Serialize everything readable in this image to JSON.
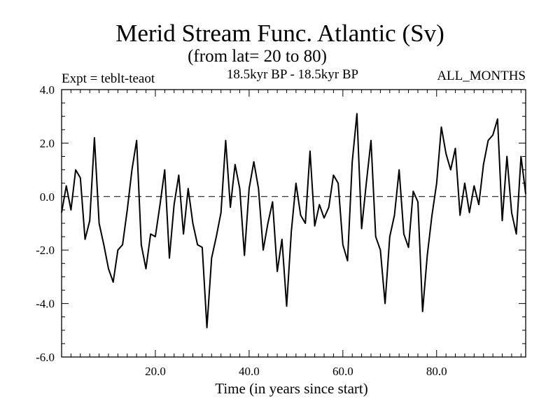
{
  "chart_data": {
    "type": "line",
    "title": "Merid Stream Func. Atlantic (Sv)",
    "subtitle": "(from lat= 20 to 80)",
    "annotations": {
      "left": "Expt = teblt-teaot",
      "center": "18.5kyr BP - 18.5kyr BP",
      "right": "ALL_MONTHS"
    },
    "xlabel": "Time (in years since start)",
    "ylabel": "",
    "xlim": [
      0,
      99
    ],
    "ylim": [
      -6,
      4
    ],
    "xticks": [
      20,
      40,
      60,
      80
    ],
    "xtick_labels": [
      "20.0",
      "40.0",
      "60.0",
      "80.0"
    ],
    "yticks": [
      -6,
      -4,
      -2,
      0,
      2,
      4
    ],
    "ytick_labels": [
      "-6.0",
      "-4.0",
      "-2.0",
      "0.0",
      "2.0",
      "4.0"
    ],
    "reference_line": 0,
    "grid": false,
    "series": [
      {
        "name": "Merid Stream Func. Atlantic",
        "x": [
          0,
          1,
          2,
          3,
          4,
          5,
          6,
          7,
          8,
          9,
          10,
          11,
          12,
          13,
          14,
          15,
          16,
          17,
          18,
          19,
          20,
          21,
          22,
          23,
          24,
          25,
          26,
          27,
          28,
          29,
          30,
          31,
          32,
          33,
          34,
          35,
          36,
          37,
          38,
          39,
          40,
          41,
          42,
          43,
          44,
          45,
          46,
          47,
          48,
          49,
          50,
          51,
          52,
          53,
          54,
          55,
          56,
          57,
          58,
          59,
          60,
          61,
          62,
          63,
          64,
          65,
          66,
          67,
          68,
          69,
          70,
          71,
          72,
          73,
          74,
          75,
          76,
          77,
          78,
          79,
          80,
          81,
          82,
          83,
          84,
          85,
          86,
          87,
          88,
          89,
          90,
          91,
          92,
          93,
          94,
          95,
          96,
          97,
          98,
          99
        ],
        "y": [
          -0.6,
          0.4,
          -0.5,
          1.0,
          0.7,
          -1.6,
          -0.9,
          2.2,
          -1.0,
          -1.8,
          -2.7,
          -3.2,
          -2.0,
          -1.8,
          -0.5,
          1.0,
          2.1,
          -1.8,
          -2.7,
          -1.4,
          -1.5,
          -0.3,
          1.0,
          -2.3,
          -0.3,
          0.8,
          -1.4,
          0.3,
          -1.0,
          -1.8,
          -1.9,
          -4.9,
          -2.3,
          -1.5,
          -0.6,
          2.1,
          -0.4,
          1.2,
          0.3,
          -2.2,
          0.3,
          1.3,
          0.3,
          -2.0,
          -1.0,
          -0.2,
          -2.8,
          -1.6,
          -4.1,
          -1.3,
          0.5,
          -0.7,
          -1.0,
          1.7,
          -1.1,
          -0.3,
          -0.8,
          -0.4,
          0.8,
          0.5,
          -1.8,
          -2.4,
          1.3,
          3.1,
          -1.2,
          0.5,
          2.1,
          -1.5,
          -2.0,
          -4.0,
          -1.5,
          -0.7,
          1.0,
          -1.4,
          -1.9,
          0.2,
          -0.2,
          -4.3,
          -2.2,
          -0.7,
          0.5,
          2.6,
          1.6,
          1.0,
          1.8,
          -0.7,
          0.5,
          -0.6,
          0.4,
          -0.3,
          1.2,
          2.1,
          2.3,
          2.9,
          -0.9,
          1.5,
          -0.6,
          -1.4,
          1.5,
          0.1
        ]
      }
    ]
  }
}
